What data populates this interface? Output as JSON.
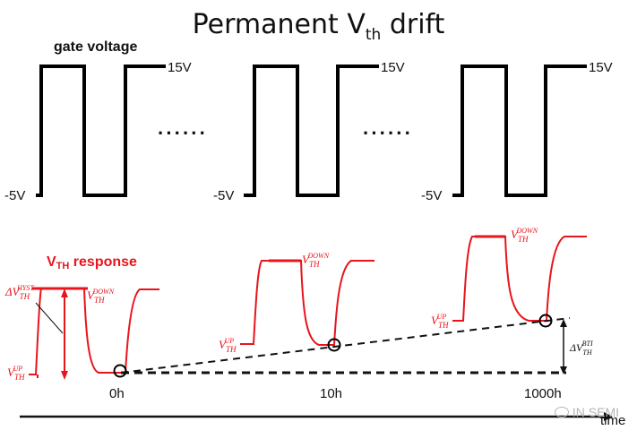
{
  "title": {
    "main": "Permanent V",
    "sub": "th",
    "tail": " drift"
  },
  "gate": {
    "label": "gate voltage",
    "high": "15V",
    "low": "-5V",
    "dots": "······"
  },
  "response": {
    "label_main": "V",
    "label_sub": "TH",
    "label_tail": " response",
    "hyst": "ΔV",
    "hyst_sub": "TH",
    "hyst_sup": "HYST",
    "down": "V",
    "down_sub": "TH",
    "down_sup": "DOWN",
    "up": "V",
    "up_sub": "TH",
    "up_sup": "UP",
    "bti": "ΔV",
    "bti_sub": "TH",
    "bti_sup": "BTI"
  },
  "time_marks": [
    "0h",
    "10h",
    "1000h"
  ],
  "axis_label": "time",
  "watermark": "IN SEMI",
  "colors": {
    "pulse": "#000000",
    "response": "#e8141c",
    "text": "#111111"
  }
}
